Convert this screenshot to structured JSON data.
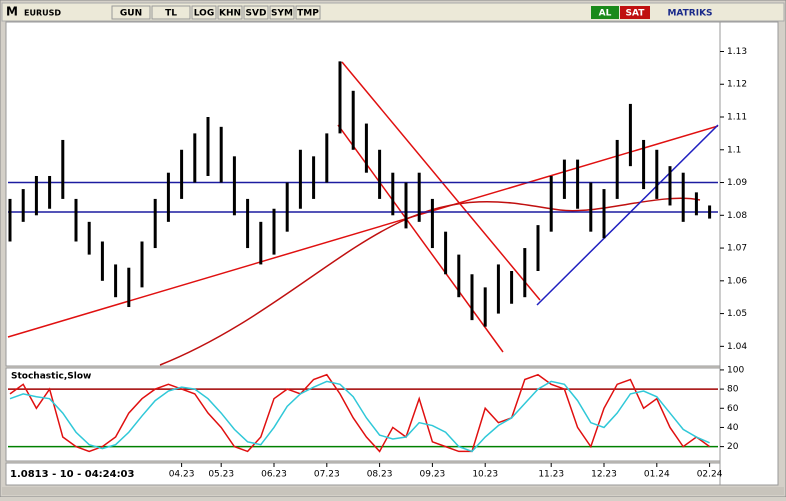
{
  "toolbar": {
    "logo": "M",
    "buttons": [
      "GUN",
      "TL",
      "LOG",
      "KHN",
      "SVD",
      "SYM",
      "TMP"
    ],
    "buy": "AL",
    "sell": "SAT",
    "brand": "MATRIKS"
  },
  "status": "1.0813 - 10 - 04:24:03",
  "chart_data": [
    {
      "type": "ohlc",
      "title": "EURUSD",
      "color": "#000000",
      "categories": [
        null,
        null,
        null,
        null,
        null,
        null,
        null,
        null,
        null,
        null,
        null,
        null,
        null,
        "04.23",
        null,
        null,
        "05.23",
        null,
        null,
        null,
        "06.23",
        null,
        null,
        null,
        "07.23",
        null,
        null,
        null,
        "08.23",
        null,
        null,
        null,
        "09.23",
        null,
        null,
        null,
        "10.23",
        null,
        null,
        null,
        null,
        "11.23",
        null,
        null,
        null,
        "12.23",
        null,
        null,
        null,
        "01.24",
        null,
        null,
        null,
        "02.24"
      ],
      "high": [
        1.085,
        1.088,
        1.092,
        1.092,
        1.103,
        1.085,
        1.078,
        1.072,
        1.065,
        1.064,
        1.072,
        1.085,
        1.093,
        1.1,
        1.105,
        1.11,
        1.107,
        1.098,
        1.085,
        1.078,
        1.082,
        1.09,
        1.1,
        1.098,
        1.105,
        1.127,
        1.118,
        1.108,
        1.1,
        1.093,
        1.09,
        1.093,
        1.085,
        1.075,
        1.068,
        1.062,
        1.058,
        1.065,
        1.063,
        1.07,
        1.077,
        1.092,
        1.097,
        1.097,
        1.09,
        1.088,
        1.103,
        1.114,
        1.103,
        1.1,
        1.095,
        1.093,
        1.087,
        1.083
      ],
      "low": [
        1.072,
        1.078,
        1.08,
        1.082,
        1.085,
        1.072,
        1.068,
        1.06,
        1.055,
        1.052,
        1.058,
        1.07,
        1.078,
        1.085,
        1.09,
        1.092,
        1.09,
        1.08,
        1.07,
        1.065,
        1.068,
        1.075,
        1.082,
        1.085,
        1.09,
        1.105,
        1.1,
        1.093,
        1.085,
        1.08,
        1.076,
        1.078,
        1.07,
        1.062,
        1.055,
        1.048,
        1.046,
        1.05,
        1.053,
        1.055,
        1.063,
        1.075,
        1.085,
        1.082,
        1.075,
        1.073,
        1.085,
        1.095,
        1.088,
        1.085,
        1.083,
        1.078,
        1.08,
        1.079
      ],
      "hlines": [
        {
          "value": 1.09,
          "color": "#1c1ca0"
        },
        {
          "value": 1.081,
          "color": "#1c1ca0"
        }
      ],
      "ylim": [
        1.034,
        1.139
      ],
      "yticks": [
        1.04,
        1.05,
        1.06,
        1.07,
        1.08,
        1.09,
        1.1,
        1.11,
        1.12,
        1.13
      ]
    },
    {
      "type": "line",
      "title": "Stochastic,Slow",
      "series": [
        {
          "color": "#e01010",
          "values": [
            75,
            85,
            60,
            80,
            30,
            20,
            15,
            20,
            30,
            55,
            70,
            80,
            85,
            80,
            75,
            55,
            40,
            20,
            15,
            30,
            70,
            80,
            75,
            90,
            95,
            75,
            50,
            30,
            15,
            40,
            30,
            70,
            25,
            20,
            15,
            15,
            60,
            45,
            50,
            90,
            95,
            85,
            80,
            40,
            20,
            60,
            85,
            90,
            60,
            70,
            40,
            20,
            30,
            20
          ]
        },
        {
          "color": "#30c8d8",
          "values": [
            70,
            75,
            72,
            70,
            55,
            35,
            22,
            18,
            22,
            35,
            52,
            68,
            78,
            82,
            80,
            70,
            55,
            38,
            25,
            22,
            40,
            62,
            75,
            82,
            88,
            85,
            72,
            50,
            32,
            28,
            30,
            45,
            42,
            35,
            20,
            15,
            30,
            42,
            50,
            65,
            80,
            88,
            85,
            68,
            45,
            40,
            55,
            75,
            78,
            72,
            55,
            38,
            30,
            24
          ]
        }
      ],
      "levels": [
        {
          "value": 80,
          "color": "#a00000"
        },
        {
          "value": 20,
          "color": "#008000"
        }
      ],
      "ylim": [
        5,
        102
      ],
      "yticks": [
        20,
        40,
        60,
        80,
        100
      ]
    }
  ]
}
